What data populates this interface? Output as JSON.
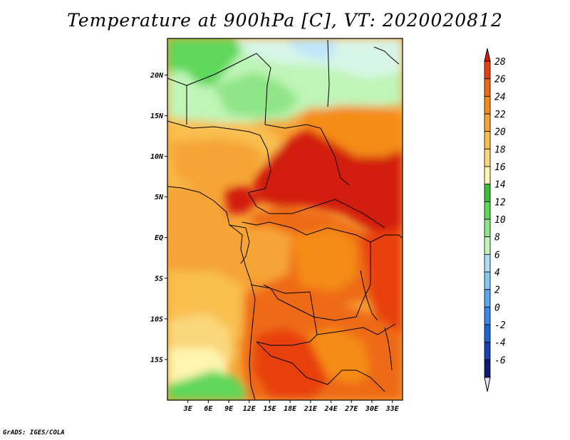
{
  "title": "Temperature at 900hPa [C], VT: 2020020812",
  "credit": "GrADS: IGES/COLA",
  "map": {
    "lat_labels": [
      "20N",
      "15N",
      "10N",
      "5N",
      "EQ",
      "5S",
      "10S",
      "15S"
    ],
    "lat_values": [
      20,
      15,
      10,
      5,
      0,
      -5,
      -10,
      -15
    ],
    "lon_labels": [
      "3E",
      "6E",
      "9E",
      "12E",
      "15E",
      "18E",
      "21E",
      "24E",
      "27E",
      "30E",
      "33E"
    ],
    "lon_values": [
      3,
      6,
      9,
      12,
      15,
      18,
      21,
      24,
      27,
      30,
      33
    ],
    "lon_range": [
      0,
      34.5
    ],
    "lat_range": [
      -20,
      24.5
    ]
  },
  "colorbar": {
    "labels": [
      "28",
      "26",
      "24",
      "22",
      "20",
      "18",
      "16",
      "14",
      "12",
      "10",
      "8",
      "6",
      "4",
      "2",
      "0",
      "-2",
      "-4",
      "-6"
    ],
    "colors": {
      "top_triangle": "#d21e0a",
      "bottom_triangle": "#e6e6fa",
      "bands": [
        "#e8400e",
        "#ee6a14",
        "#f58c17",
        "#f6a436",
        "#f9bf4f",
        "#fad77a",
        "#fff5b0",
        "#3bbf39",
        "#5fd75a",
        "#8fe586",
        "#c0f5b8",
        "#aeddf7",
        "#86c7f4",
        "#5aa6ef",
        "#3b87e8",
        "#1f64d4",
        "#1a3fb5",
        "#0e1b74"
      ]
    }
  },
  "palette": {
    "hot": "#d21e0a",
    "very_warm": "#e8400e",
    "warm": "#ee6a14",
    "orange": "#f58c17",
    "light_orange": "#f6a436",
    "amber": "#f9bf4f",
    "pale_yellow": "#fad77a",
    "cream": "#fff5b0",
    "green": "#5fd75a",
    "light_green": "#8fe586",
    "pale_green": "#c0f5b8",
    "ice": "#d8f6e8",
    "pale_blue": "#bfe6fb"
  }
}
